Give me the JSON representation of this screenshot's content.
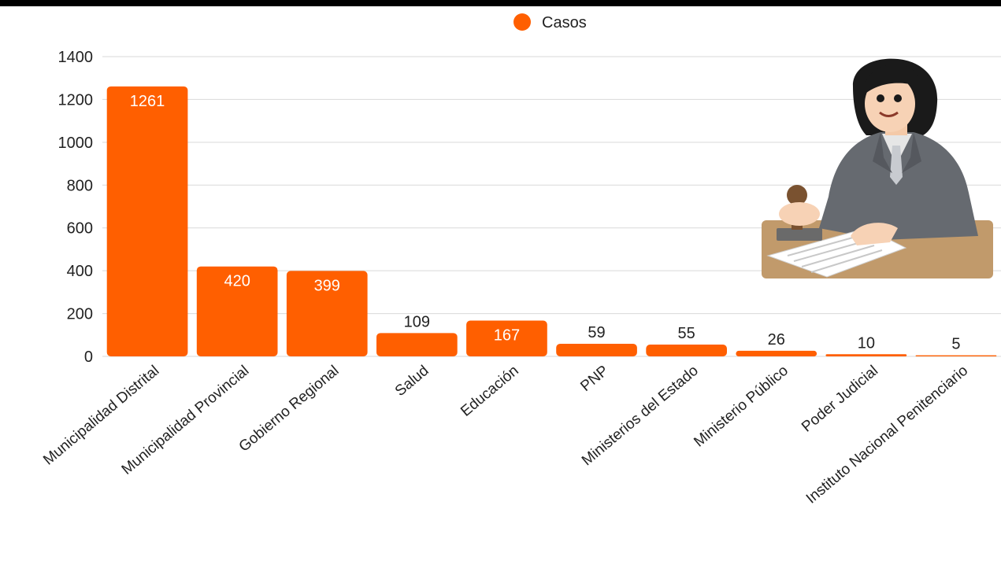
{
  "chart_data": {
    "type": "bar",
    "categories": [
      "Municipalidad Distrital",
      "Municipalidad Provincial",
      "Gobierno Regional",
      "Salud",
      "Educación",
      "PNP",
      "Ministerios del Estado",
      "Ministerio Público",
      "Poder Judicial",
      "Instituto Nacional Penitenciario"
    ],
    "series": [
      {
        "name": "Casos",
        "values": [
          1261,
          420,
          399,
          109,
          167,
          59,
          55,
          26,
          10,
          5
        ],
        "color": "#FF5F00"
      }
    ],
    "ylim": [
      0,
      1400
    ],
    "yticks": [
      0,
      200,
      400,
      600,
      800,
      1000,
      1200,
      1400
    ],
    "grid": true,
    "legend": "top-center",
    "title": "",
    "xlabel": "",
    "ylabel": ""
  },
  "illustration": {
    "icon": "judge-stamping-document-illustration"
  }
}
